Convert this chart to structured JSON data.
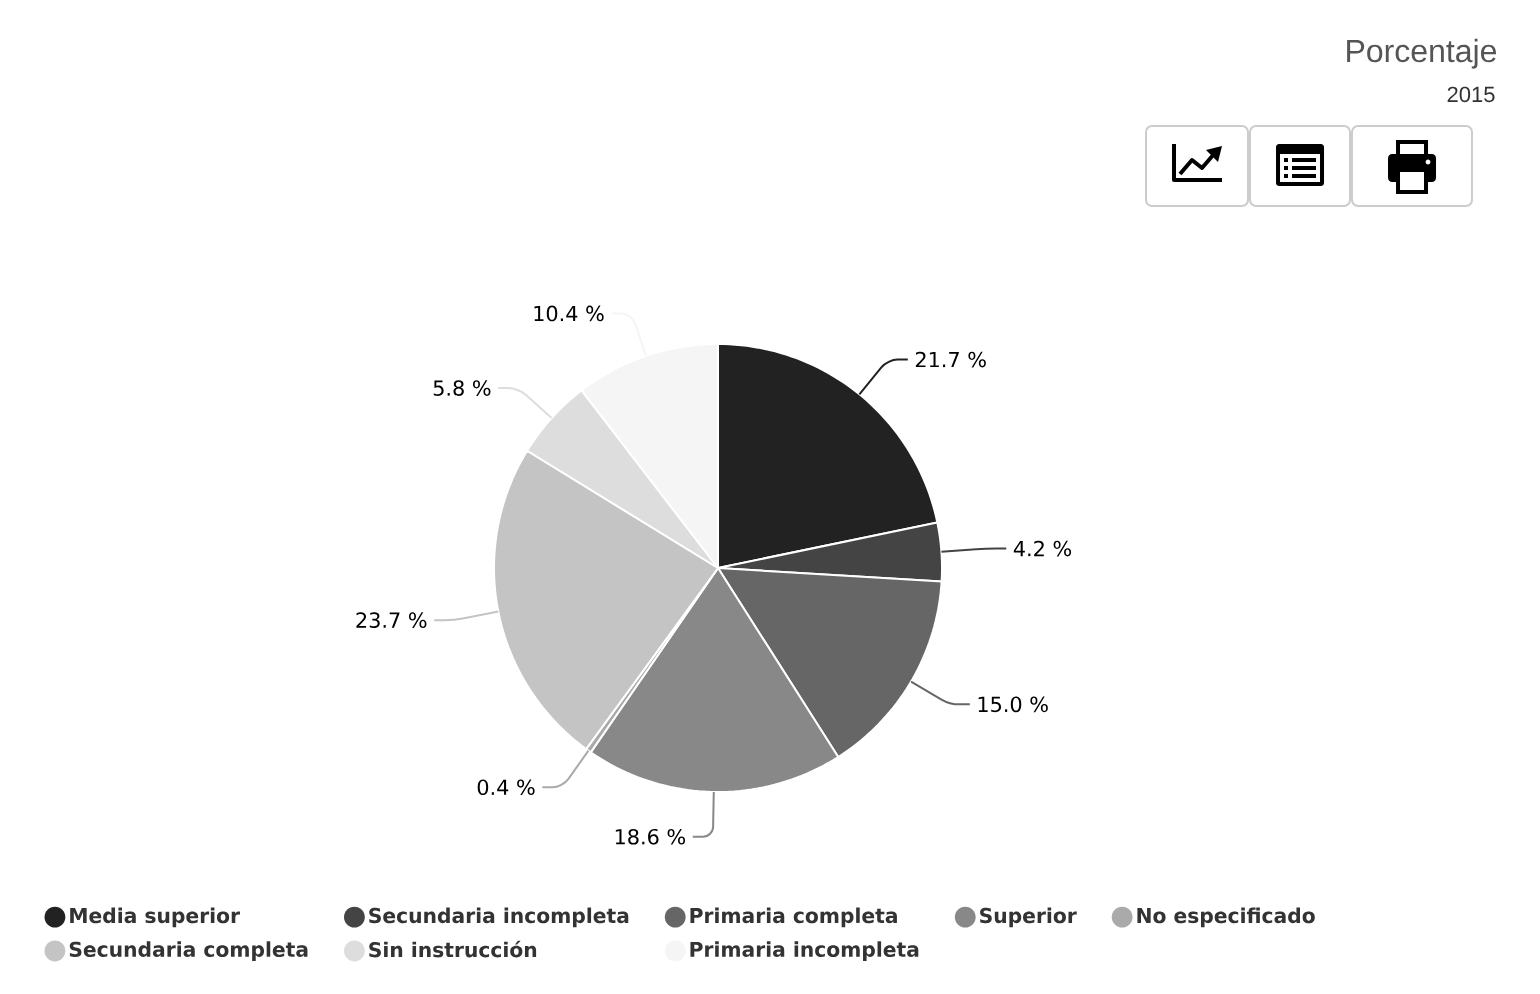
{
  "chart_data": {
    "type": "pie",
    "title": "Porcentaje",
    "subtitle": "2015",
    "categories": [
      "Media superior",
      "Secundaria incompleta",
      "Primaria completa",
      "Superior",
      "No especificado",
      "Secundaria completa",
      "Sin instrucción",
      "Primaria incompleta"
    ],
    "values": [
      21.7,
      4.2,
      15.0,
      18.6,
      0.4,
      23.7,
      5.8,
      10.4
    ],
    "colors": [
      "#222222",
      "#444444",
      "#666666",
      "#888888",
      "#aaaaaa",
      "#c4c4c4",
      "#dddddd",
      "#f5f5f5"
    ],
    "value_labels": [
      "21.7 %",
      "4.2 %",
      "15.0 %",
      "18.6 %",
      "0.4 %",
      "23.7 %",
      "5.8 %",
      "10.4 %"
    ],
    "legend": "bottom"
  }
}
